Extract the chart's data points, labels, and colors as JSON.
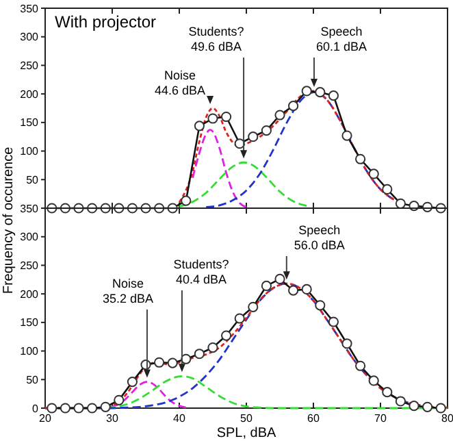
{
  "chart_data": [
    {
      "type": "line",
      "title": "With projector",
      "ylabel": "Frequency of occurence",
      "xlim": [
        20,
        80
      ],
      "xticks": [
        20,
        30,
        40,
        50,
        60,
        70,
        80
      ],
      "ylim": [
        0,
        350
      ],
      "yticks": [
        {
          "value": 0,
          "label": null
        },
        50,
        100,
        150,
        200,
        250,
        300,
        350
      ],
      "tick_labels": "y",
      "series": [
        {
          "type": "line",
          "color": "#e020e0",
          "line_style": "dashed",
          "x": [
            42,
            43,
            44,
            44.6,
            45,
            46,
            47,
            48,
            49,
            50
          ],
          "values": [
            53,
            97,
            130,
            137,
            134,
            105,
            62,
            28,
            9,
            2
          ]
        },
        {
          "type": "line",
          "color": "#33dd33",
          "line_style": "dashed",
          "x": [
            40,
            42,
            44,
            46,
            48,
            49.6,
            51,
            53,
            55,
            57,
            59
          ],
          "values": [
            3,
            11,
            27,
            51,
            73,
            80,
            75,
            54,
            29,
            12,
            4
          ]
        },
        {
          "type": "line",
          "color": "#2233cc",
          "line_style": "dashed",
          "x": [
            44,
            46,
            48,
            50,
            52,
            54,
            56,
            58,
            60.1,
            62,
            64,
            66,
            68,
            70,
            72
          ],
          "values": [
            2,
            5,
            14,
            31,
            60,
            102,
            149,
            187,
            203,
            190,
            153,
            107,
            64,
            33,
            15
          ]
        },
        {
          "type": "line",
          "color": "#dd2222",
          "line_style": "dotted",
          "x": [
            40,
            42,
            43,
            44,
            45,
            46,
            47,
            48,
            49,
            50,
            52,
            54,
            56,
            58,
            60,
            62,
            64,
            66,
            68,
            70,
            72
          ],
          "values": [
            10,
            65,
            117,
            159,
            175,
            161,
            133,
            115,
            109,
            113,
            125,
            144,
            169,
            195,
            205,
            190,
            153,
            107,
            64,
            33,
            15
          ]
        },
        {
          "type": "line",
          "color": "#111111",
          "line_style": "solid",
          "marker": "circle",
          "x": [
            21,
            23,
            25,
            27,
            29,
            31,
            33,
            35,
            37,
            39,
            41,
            43,
            45,
            47,
            49,
            51,
            53,
            55,
            57,
            59,
            61,
            63,
            65,
            67,
            69,
            71,
            73,
            75,
            77,
            79
          ],
          "values": [
            0,
            0,
            0,
            0,
            0,
            0,
            0,
            0,
            0,
            0,
            13,
            144,
            157,
            160,
            113,
            125,
            136,
            163,
            179,
            205,
            203,
            197,
            127,
            86,
            60,
            33,
            8,
            4,
            2,
            0
          ]
        }
      ],
      "annotations": [
        {
          "text": "Noise\n44.6 dBA",
          "x": 44.6,
          "y": 175
        },
        {
          "text": "Students?\n49.6 dBA",
          "x": 49.6,
          "y": 80
        },
        {
          "text": "Speech\n60.1 dBA",
          "x": 60.1,
          "y": 205
        }
      ]
    },
    {
      "type": "line",
      "xlabel": "SPL, dBA",
      "xlim": [
        20,
        80
      ],
      "xticks": [
        20,
        30,
        40,
        50,
        60,
        70,
        80
      ],
      "ylim": [
        0,
        350
      ],
      "yticks": [
        0,
        50,
        100,
        150,
        200,
        250,
        300,
        350
      ],
      "series": [
        {
          "type": "line",
          "color": "#e020e0",
          "line_style": "dashed",
          "x": [
            30,
            31,
            32,
            33,
            34,
            35.2,
            36,
            37,
            38,
            39,
            40,
            41
          ],
          "values": [
            3,
            7,
            16,
            28,
            40,
            46,
            43,
            33,
            20,
            10,
            4,
            1
          ]
        },
        {
          "type": "line",
          "color": "#33dd33",
          "line_style": "dashed",
          "x": [
            20,
            28,
            30,
            32,
            34,
            36,
            38,
            40.4,
            42,
            44,
            46,
            48,
            50,
            52,
            54,
            80
          ],
          "values": [
            0,
            0,
            2,
            6,
            16,
            31,
            47,
            56,
            52,
            37,
            21,
            9,
            3,
            1,
            0,
            0
          ]
        },
        {
          "type": "line",
          "color": "#2233cc",
          "line_style": "dashed",
          "x": [
            20,
            30,
            32,
            34,
            36,
            38,
            40,
            42,
            44,
            46,
            48,
            50,
            52,
            54,
            56,
            58,
            60,
            62,
            64,
            66,
            68,
            70,
            72,
            74,
            76
          ],
          "values": [
            0,
            0,
            1,
            2,
            5,
            10,
            20,
            35,
            57,
            85,
            120,
            155,
            188,
            210,
            218,
            210,
            188,
            155,
            120,
            85,
            57,
            35,
            20,
            10,
            5
          ]
        },
        {
          "type": "line",
          "color": "#dd2222",
          "line_style": "dotted",
          "x": [
            20,
            28,
            30,
            31,
            32,
            33,
            34,
            35,
            36,
            37,
            38,
            39,
            40,
            42,
            44,
            46,
            48,
            50,
            52,
            54,
            56,
            58,
            60,
            62,
            64,
            66,
            68,
            70,
            72,
            74,
            76,
            78,
            80
          ],
          "values": [
            0,
            0,
            5,
            11,
            23,
            39,
            58,
            72,
            79,
            79,
            77,
            76,
            80,
            88,
            94,
            106,
            129,
            158,
            189,
            210,
            218,
            210,
            188,
            155,
            120,
            85,
            57,
            35,
            20,
            10,
            5,
            2,
            1
          ]
        },
        {
          "type": "line",
          "color": "#111111",
          "line_style": "solid",
          "marker": "circle",
          "x": [
            21,
            23,
            25,
            27,
            29,
            31,
            33,
            35,
            37,
            39,
            41,
            43,
            45,
            47,
            49,
            51,
            53,
            55,
            57,
            59,
            61,
            63,
            65,
            67,
            69,
            71,
            73,
            75,
            77,
            79
          ],
          "values": [
            0,
            0,
            0,
            0,
            2,
            14,
            46,
            76,
            80,
            79,
            86,
            95,
            106,
            127,
            157,
            177,
            214,
            226,
            206,
            208,
            180,
            151,
            113,
            74,
            48,
            28,
            12,
            4,
            2,
            0
          ]
        }
      ],
      "annotations": [
        {
          "text": "Noise\n35.2 dBA",
          "x": 35.2,
          "y": 46
        },
        {
          "text": "Students?\n40.4 dBA",
          "x": 40.4,
          "y": 56
        },
        {
          "text": "Speech\n56.0 dBA",
          "x": 56,
          "y": 218
        }
      ]
    }
  ]
}
